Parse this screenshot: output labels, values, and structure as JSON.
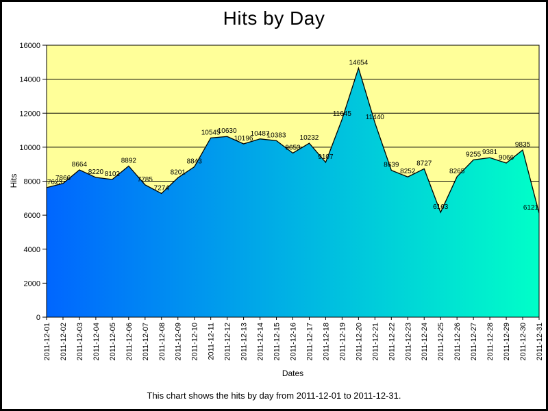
{
  "chart_data": {
    "type": "area",
    "title": "Hits by Day",
    "xlabel": "Dates",
    "ylabel": "Hits",
    "caption": "This chart shows the hits by day from 2011-12-01 to 2011-12-31.",
    "categories": [
      "2011-12-01",
      "2011-12-02",
      "2011-12-03",
      "2011-12-04",
      "2011-12-05",
      "2011-12-06",
      "2011-12-07",
      "2011-12-08",
      "2011-12-09",
      "2011-12-10",
      "2011-12-11",
      "2011-12-12",
      "2011-12-13",
      "2011-12-14",
      "2011-12-15",
      "2011-12-16",
      "2011-12-17",
      "2011-12-18",
      "2011-12-19",
      "2011-12-20",
      "2011-12-21",
      "2011-12-22",
      "2011-12-23",
      "2011-12-24",
      "2011-12-25",
      "2011-12-26",
      "2011-12-27",
      "2011-12-28",
      "2011-12-29",
      "2011-12-30",
      "2011-12-31"
    ],
    "values": [
      7623,
      7866,
      8664,
      8220,
      8102,
      8892,
      7785,
      7274,
      8201,
      8843,
      10545,
      10630,
      10196,
      10487,
      10383,
      9653,
      10232,
      9107,
      11645,
      14654,
      11440,
      8639,
      8252,
      8727,
      6163,
      8265,
      9255,
      9381,
      9066,
      9835,
      6121
    ],
    "ylim": [
      0,
      16000
    ],
    "ytick_step": 2000,
    "grid": "horizontal",
    "legend": "none",
    "colors": {
      "plot_bg": "#FFFF99",
      "area_gradient": [
        "#0066FF",
        "#00B3E4",
        "#00FFC8"
      ],
      "outline": "#000000",
      "grid": "#000000",
      "text": "#000000",
      "frame_border": "#000000"
    }
  }
}
